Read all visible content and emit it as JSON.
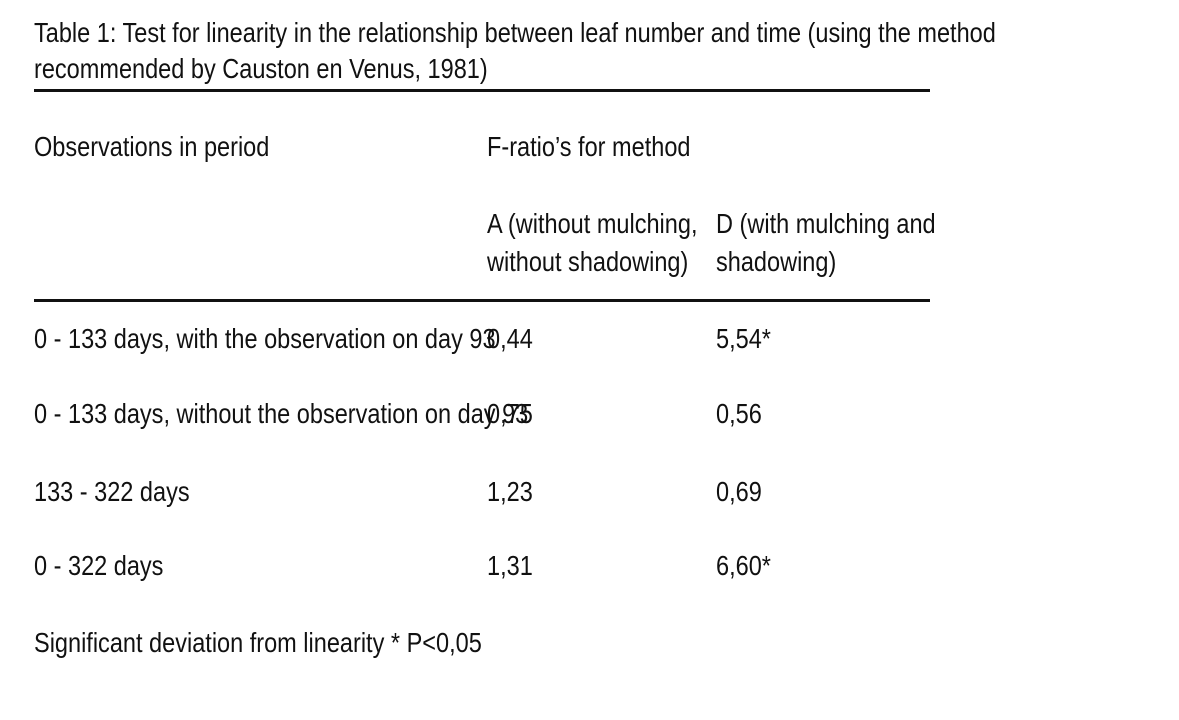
{
  "table": {
    "title_line_1": "Table 1: Test for linearity in the relationship between leaf number and time (using the method",
    "title_line_2": "recommended by Causton en Venus, 1981)",
    "header": {
      "observations": "Observations in period",
      "f_ratio": "F-ratio’s for method",
      "method_a_line_1": "A (without mulching,",
      "method_a_line_2": "without shadowing)",
      "method_d_line_1": "D (with mulching and",
      "method_d_line_2": "shadowing)"
    },
    "rows": [
      {
        "period": "0 - 133 days, with the observation on day 93",
        "a": "0,44",
        "d": "5,54*"
      },
      {
        "period": "0 - 133 days, without the observation on day 93",
        "a": "0,75",
        "d": "0,56"
      },
      {
        "period": "133 - 322 days",
        "a": "1,23",
        "d": "0,69"
      },
      {
        "period": "0 - 322 days",
        "a": "1,31",
        "d": "6,60*"
      }
    ],
    "footnote": "Significant deviation from linearity  * P<0,05"
  }
}
